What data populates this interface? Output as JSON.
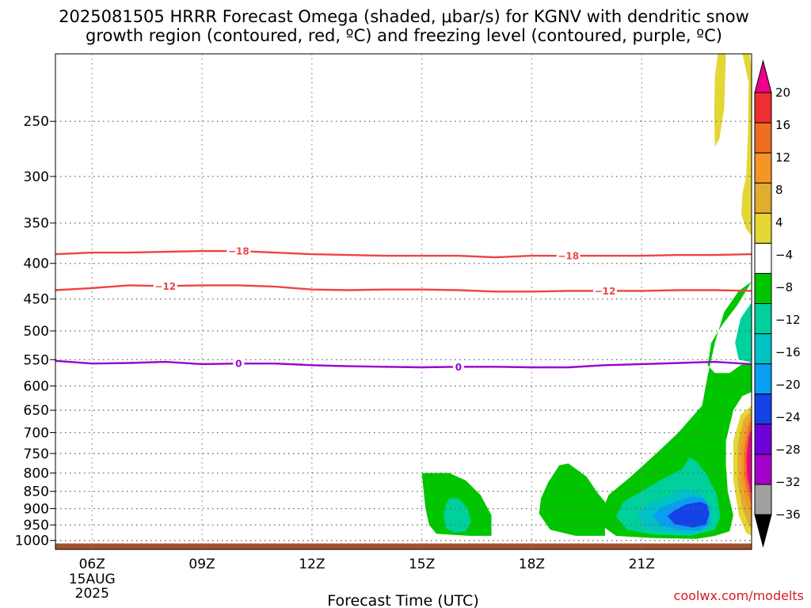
{
  "chart_data": {
    "type": "heatmap",
    "title_lines": [
      "2025081505 HRRR Forecast Omega (shaded, μbar/s) for KGNV with dendritic snow",
      "growth region (contoured, red, ºC) and freezing level (contoured, purple, ºC)"
    ],
    "xlabel": "Forecast Time (UTC)",
    "x_range_hours": [
      5,
      24
    ],
    "x_ticks": [
      {
        "hour": 6,
        "label": "06Z",
        "extra": [
          "15AUG",
          "2025"
        ]
      },
      {
        "hour": 9,
        "label": "09Z"
      },
      {
        "hour": 12,
        "label": "12Z"
      },
      {
        "hour": 15,
        "label": "15Z"
      },
      {
        "hour": 18,
        "label": "18Z"
      },
      {
        "hour": 21,
        "label": "21Z"
      }
    ],
    "y_axis": {
      "scale": "log",
      "unit": "hPa",
      "range": [
        1030,
        200
      ],
      "ticks": [
        250,
        300,
        350,
        400,
        450,
        500,
        550,
        600,
        650,
        700,
        750,
        800,
        850,
        900,
        950,
        1000
      ]
    },
    "grid": "dotted",
    "ground_level_hpa": 1010,
    "colorbar": {
      "labels": [
        "20",
        "16",
        "12",
        "8",
        "4",
        "−4",
        "−8",
        "−12",
        "−16",
        "−20",
        "−24",
        "−28",
        "−32",
        "−36"
      ],
      "colors": [
        "#ee0088",
        "#ee2e30",
        "#ef6d21",
        "#f49525",
        "#e2ac2e",
        "#e4d634",
        "#ffffff",
        "#00c600",
        "#00d09b",
        "#00c1c6",
        "#0a9ef2",
        "#1442e6",
        "#6f00d8",
        "#a300c8",
        "#a0a0a0",
        "#000000"
      ]
    },
    "omega_regions": [
      {
        "value_range": "4 to 8",
        "color": "#e4d634",
        "points": [
          [
            23.08,
            200
          ],
          [
            23.3,
            200
          ],
          [
            23.25,
            240
          ],
          [
            23.12,
            265
          ],
          [
            23.0,
            272
          ],
          [
            22.98,
            245
          ],
          [
            23.0,
            215
          ]
        ]
      },
      {
        "value_range": "4 to 8",
        "color": "#e4d634",
        "points": [
          [
            23.75,
            200
          ],
          [
            23.95,
            200
          ],
          [
            24.0,
            210
          ],
          [
            24.0,
            365
          ],
          [
            23.85,
            357
          ],
          [
            23.72,
            340
          ],
          [
            23.75,
            318
          ],
          [
            23.85,
            300
          ],
          [
            23.9,
            260
          ],
          [
            23.92,
            220
          ]
        ]
      },
      {
        "value_range": "-4 to -8",
        "color": "#00c600",
        "points": [
          [
            15.0,
            800
          ],
          [
            15.75,
            800
          ],
          [
            16.2,
            820
          ],
          [
            16.6,
            860
          ],
          [
            16.9,
            920
          ],
          [
            16.9,
            985
          ],
          [
            16.3,
            985
          ],
          [
            15.4,
            978
          ],
          [
            15.2,
            950
          ],
          [
            15.1,
            900
          ],
          [
            15.05,
            850
          ]
        ]
      },
      {
        "value_range": "-8 to -12",
        "color": "#00d09b",
        "points": [
          [
            15.75,
            870
          ],
          [
            16.0,
            870
          ],
          [
            16.25,
            900
          ],
          [
            16.35,
            940
          ],
          [
            16.2,
            970
          ],
          [
            15.9,
            975
          ],
          [
            15.65,
            960
          ],
          [
            15.6,
            920
          ],
          [
            15.65,
            890
          ]
        ]
      },
      {
        "value_range": "-4 to -8",
        "color": "#00c600",
        "points": [
          [
            18.75,
            780
          ],
          [
            19.0,
            775
          ],
          [
            19.5,
            810
          ],
          [
            19.8,
            855
          ],
          [
            20.0,
            880
          ],
          [
            20.0,
            985
          ],
          [
            19.2,
            985
          ],
          [
            18.5,
            965
          ],
          [
            18.2,
            915
          ],
          [
            18.25,
            870
          ],
          [
            18.45,
            825
          ]
        ]
      },
      {
        "value_range": "-4 to -8",
        "color": "#00c600",
        "points": [
          [
            24.0,
            425
          ],
          [
            23.65,
            438
          ],
          [
            23.25,
            470
          ],
          [
            23.0,
            520
          ],
          [
            22.8,
            580
          ],
          [
            22.65,
            640
          ],
          [
            22.0,
            700
          ],
          [
            21.4,
            750
          ],
          [
            20.7,
            810
          ],
          [
            20.1,
            860
          ],
          [
            19.9,
            910
          ],
          [
            19.95,
            955
          ],
          [
            20.3,
            985
          ],
          [
            21.3,
            992
          ],
          [
            22.5,
            995
          ],
          [
            23.0,
            985
          ],
          [
            23.4,
            970
          ],
          [
            23.5,
            920
          ],
          [
            23.35,
            850
          ],
          [
            23.3,
            780
          ],
          [
            23.3,
            720
          ],
          [
            23.5,
            650
          ],
          [
            23.75,
            620
          ],
          [
            24.0,
            612
          ],
          [
            24.0,
            612
          ],
          [
            24.0,
            555
          ],
          [
            23.7,
            560
          ],
          [
            23.4,
            575
          ],
          [
            23.0,
            575
          ],
          [
            22.8,
            560
          ],
          [
            22.9,
            520
          ],
          [
            23.2,
            490
          ],
          [
            23.6,
            460
          ]
        ]
      },
      {
        "value_range": "-8 to -12",
        "color": "#00d09b",
        "points": [
          [
            24.0,
            455
          ],
          [
            23.7,
            480
          ],
          [
            23.55,
            520
          ],
          [
            23.65,
            550
          ],
          [
            24.0,
            555
          ]
        ]
      },
      {
        "value_range": "-8 to -12",
        "color": "#00d09b",
        "points": [
          [
            22.3,
            760
          ],
          [
            22.1,
            790
          ],
          [
            21.5,
            820
          ],
          [
            21.0,
            850
          ],
          [
            20.5,
            880
          ],
          [
            20.3,
            925
          ],
          [
            20.6,
            965
          ],
          [
            21.3,
            980
          ],
          [
            22.3,
            985
          ],
          [
            23.0,
            965
          ],
          [
            23.15,
            925
          ],
          [
            23.05,
            860
          ],
          [
            22.75,
            800
          ],
          [
            22.5,
            770
          ]
        ]
      },
      {
        "value_range": "-12 to -16",
        "color": "#00c1c6",
        "points": [
          [
            22.2,
            840
          ],
          [
            21.8,
            860
          ],
          [
            21.2,
            885
          ],
          [
            20.9,
            915
          ],
          [
            21.0,
            955
          ],
          [
            21.6,
            975
          ],
          [
            22.4,
            978
          ],
          [
            22.9,
            955
          ],
          [
            22.9,
            900
          ],
          [
            22.6,
            855
          ]
        ]
      },
      {
        "value_range": "-16 to -20",
        "color": "#0a9ef2",
        "points": [
          [
            22.4,
            865
          ],
          [
            21.9,
            880
          ],
          [
            21.5,
            900
          ],
          [
            21.3,
            920
          ],
          [
            21.5,
            950
          ],
          [
            22.0,
            965
          ],
          [
            22.6,
            968
          ],
          [
            22.85,
            945
          ],
          [
            22.85,
            895
          ],
          [
            22.7,
            870
          ]
        ]
      },
      {
        "value_range": "-20 to -24",
        "color": "#1442e6",
        "points": [
          [
            22.6,
            880
          ],
          [
            22.2,
            888
          ],
          [
            21.9,
            905
          ],
          [
            21.7,
            922
          ],
          [
            21.9,
            948
          ],
          [
            22.4,
            958
          ],
          [
            22.75,
            950
          ],
          [
            22.85,
            915
          ],
          [
            22.78,
            888
          ]
        ]
      },
      {
        "value_range": "4 to 8",
        "color": "#e4d634",
        "points": [
          [
            24.0,
            640
          ],
          [
            23.7,
            660
          ],
          [
            23.5,
            720
          ],
          [
            23.5,
            820
          ],
          [
            23.65,
            920
          ],
          [
            23.85,
            975
          ],
          [
            24.0,
            985
          ]
        ]
      },
      {
        "value_range": "8 to 12",
        "color": "#e2ac2e",
        "points": [
          [
            24.0,
            650
          ],
          [
            23.78,
            670
          ],
          [
            23.62,
            730
          ],
          [
            23.62,
            820
          ],
          [
            23.75,
            900
          ],
          [
            23.92,
            950
          ],
          [
            24.0,
            960
          ]
        ]
      },
      {
        "value_range": "12 to 16",
        "color": "#f49525",
        "points": [
          [
            24.0,
            660
          ],
          [
            23.85,
            680
          ],
          [
            23.72,
            740
          ],
          [
            23.72,
            815
          ],
          [
            23.85,
            880
          ],
          [
            24.0,
            925
          ]
        ]
      },
      {
        "value_range": "16 to 20",
        "color": "#ef6d21",
        "points": [
          [
            24.0,
            670
          ],
          [
            23.9,
            690
          ],
          [
            23.8,
            745
          ],
          [
            23.8,
            810
          ],
          [
            23.9,
            860
          ],
          [
            24.0,
            890
          ]
        ]
      },
      {
        "value_range": "20+",
        "color": "#ee0088",
        "points": [
          [
            24.0,
            690
          ],
          [
            23.92,
            710
          ],
          [
            23.86,
            760
          ],
          [
            23.88,
            810
          ],
          [
            23.95,
            845
          ],
          [
            24.0,
            860
          ]
        ]
      }
    ],
    "temperature_contours": [
      {
        "level": "−18",
        "color": "#ee4444",
        "label_hours": [
          10.0,
          19.0
        ],
        "points": [
          [
            5,
            388
          ],
          [
            6,
            386
          ],
          [
            7,
            386
          ],
          [
            8,
            385
          ],
          [
            9,
            384
          ],
          [
            10,
            384
          ],
          [
            11,
            386
          ],
          [
            12,
            388
          ],
          [
            13,
            389
          ],
          [
            14,
            390
          ],
          [
            15,
            390
          ],
          [
            16,
            390
          ],
          [
            17,
            392
          ],
          [
            18,
            390
          ],
          [
            19,
            390
          ],
          [
            20,
            390
          ],
          [
            21,
            390
          ],
          [
            22,
            389
          ],
          [
            23,
            389
          ],
          [
            24,
            388
          ]
        ]
      },
      {
        "level": "−12",
        "color": "#ee4444",
        "label_hours": [
          8.0,
          20.0
        ],
        "points": [
          [
            5,
            437
          ],
          [
            6,
            434
          ],
          [
            7,
            430
          ],
          [
            8,
            431
          ],
          [
            9,
            430
          ],
          [
            10,
            430
          ],
          [
            11,
            432
          ],
          [
            12,
            436
          ],
          [
            13,
            437
          ],
          [
            14,
            436
          ],
          [
            15,
            436
          ],
          [
            16,
            437
          ],
          [
            17,
            439
          ],
          [
            18,
            439
          ],
          [
            19,
            438
          ],
          [
            20,
            438
          ],
          [
            21,
            438
          ],
          [
            22,
            437
          ],
          [
            23,
            437
          ],
          [
            24,
            438
          ]
        ]
      },
      {
        "level": "0",
        "color": "#9a00d0",
        "label_hours": [
          10.0,
          16.0
        ],
        "points": [
          [
            5,
            552
          ],
          [
            6,
            557
          ],
          [
            7,
            556
          ],
          [
            8,
            554
          ],
          [
            9,
            558
          ],
          [
            10,
            557
          ],
          [
            11,
            557
          ],
          [
            12,
            560
          ],
          [
            13,
            562
          ],
          [
            14,
            563
          ],
          [
            15,
            564
          ],
          [
            16,
            563
          ],
          [
            17,
            563
          ],
          [
            18,
            564
          ],
          [
            19,
            564
          ],
          [
            20,
            560
          ],
          [
            21,
            558
          ],
          [
            22,
            556
          ],
          [
            23,
            554
          ],
          [
            24,
            558
          ]
        ]
      }
    ]
  },
  "credit": "coolwx.com/modelts"
}
